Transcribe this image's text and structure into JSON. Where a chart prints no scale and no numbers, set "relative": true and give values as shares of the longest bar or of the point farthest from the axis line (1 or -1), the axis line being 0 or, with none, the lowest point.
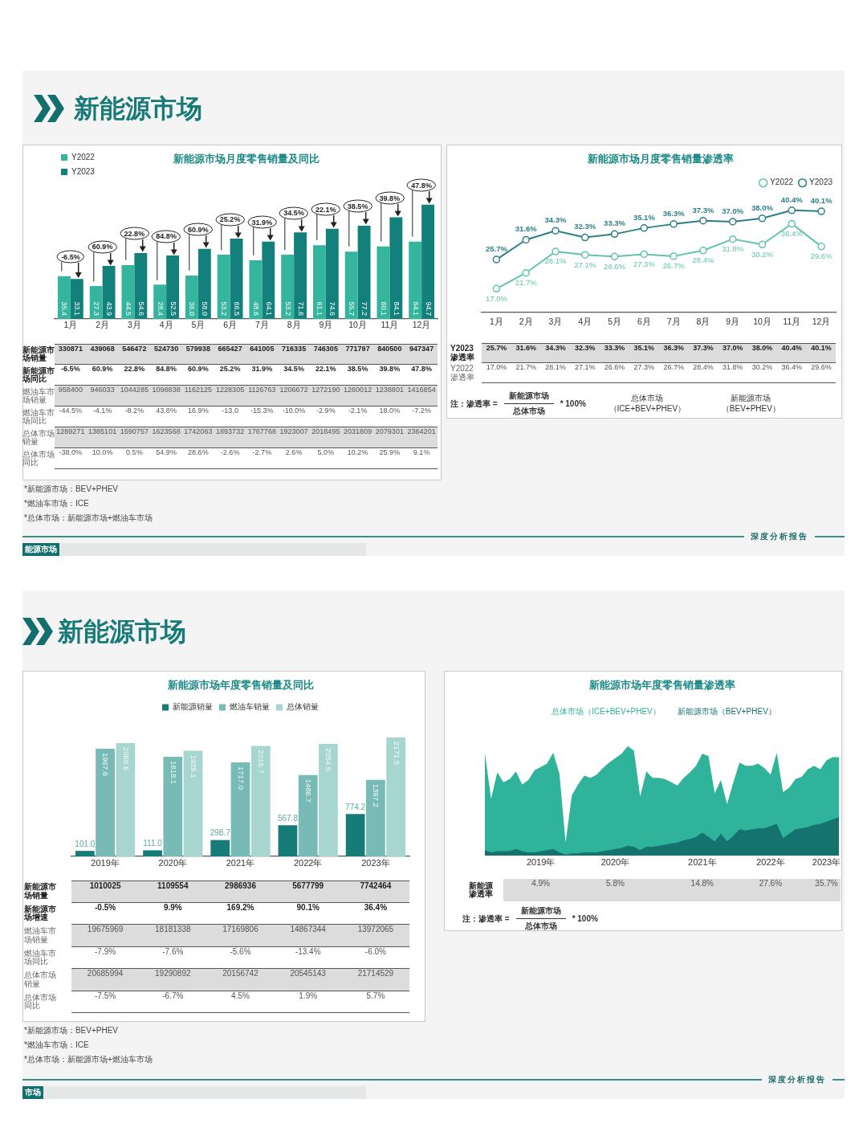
{
  "chart_data": [
    {
      "type": "other",
      "title": "新能源市场",
      "annotations": [
        "深度分析报告",
        "能源市场"
      ]
    },
    {
      "type": "bar",
      "title": "新能源市场月度零售销量及同比",
      "categories": [
        "1月",
        "2月",
        "3月",
        "4月",
        "5月",
        "6月",
        "7月",
        "8月",
        "9月",
        "10月",
        "11月",
        "12月"
      ],
      "series": [
        {
          "name": "Y2022",
          "color": "#35b59d",
          "values": [
            35.4,
            27.3,
            44.5,
            28.4,
            36.0,
            53.2,
            48.6,
            53.2,
            61.1,
            55.7,
            60.1,
            64.1
          ],
          "value_labels": [
            "35.4",
            "27.3",
            "44.5",
            "28.4",
            "36.0",
            "53.2",
            "48.6",
            "53.2",
            "61.1",
            "55.7",
            "60.1",
            "64.1"
          ]
        },
        {
          "name": "Y2023",
          "color": "#13807c",
          "values": [
            33.1,
            43.9,
            54.6,
            52.5,
            58.0,
            66.5,
            64.1,
            71.6,
            74.6,
            77.2,
            84.1,
            94.7
          ],
          "value_labels": [
            "33.1",
            "43.9",
            "54.6",
            "52.5",
            "58.0",
            "66.5",
            "64.1",
            "71.6",
            "74.6",
            "77.2",
            "84.1",
            "94.7"
          ]
        }
      ],
      "legend": "top left",
      "tick_labels": false,
      "annotations": [
        {
          "text": "-6.5%",
          "x": "1月",
          "y": 33.1
        },
        {
          "text": "60.9%",
          "x": "2月",
          "y": 43.9
        },
        {
          "text": "22.8%",
          "x": "3月",
          "y": 54.6
        },
        {
          "text": "84.8%",
          "x": "4月",
          "y": 52.5
        },
        {
          "text": "60.9%",
          "x": "5月",
          "y": 58.0
        },
        {
          "text": "25.2%",
          "x": "6月",
          "y": 66.5
        },
        {
          "text": "31.9%",
          "x": "7月",
          "y": 64.1
        },
        {
          "text": "34.5%",
          "x": "8月",
          "y": 71.6
        },
        {
          "text": "22.1%",
          "x": "9月",
          "y": 74.6
        },
        {
          "text": "38.5%",
          "x": "10月",
          "y": 77.2
        },
        {
          "text": "39.8%",
          "x": "11月",
          "y": 84.1
        },
        {
          "text": "47.8%",
          "x": "12月",
          "y": 94.7
        }
      ]
    },
    {
      "type": "heatmap",
      "categories": [
        "1月",
        "2月",
        "3月",
        "4月",
        "5月",
        "6月",
        "7月",
        "8月",
        "9月",
        "10月",
        "11月",
        "12月"
      ],
      "y_categories": [
        "新能源市场销量",
        "新能源市场同比",
        "燃油车市场销量",
        "燃油车市场同比",
        "总体市场销量",
        "总体市场同比"
      ],
      "cells": [
        [
          330871,
          439068,
          546472,
          524730,
          579938,
          665427,
          641005,
          716335,
          746305,
          771797,
          840500,
          947347
        ],
        [
          -6.5,
          60.9,
          22.8,
          84.8,
          60.9,
          25.2,
          31.9,
          34.5,
          22.1,
          38.5,
          39.8,
          47.8
        ],
        [
          958400,
          946033,
          1044285,
          1098838,
          1162125,
          1228305,
          1126763,
          1206672,
          1272190,
          1260012,
          1238801,
          1416854
        ],
        [
          -44.5,
          -4.1,
          -8.2,
          43.8,
          16.9,
          -13.0,
          -15.3,
          -10.0,
          -2.9,
          -2.1,
          18.0,
          -7.2
        ],
        [
          1289271,
          1385101,
          1590757,
          1623568,
          1742063,
          1893732,
          1767768,
          1923007,
          2018495,
          2031809,
          2079301,
          2364201
        ],
        [
          -38.0,
          10.0,
          0.5,
          54.9,
          28.6,
          -2.6,
          -2.7,
          2.6,
          5.0,
          10.2,
          25.9,
          9.1
        ]
      ],
      "cell_labels": [
        [
          "330871",
          "439068",
          "546472",
          "524730",
          "579938",
          "665427",
          "641005",
          "716335",
          "746305",
          "771797",
          "840500",
          "947347"
        ],
        [
          "-6.5%",
          "60.9%",
          "22.8%",
          "84.8%",
          "60.9%",
          "25.2%",
          "31.9%",
          "34.5%",
          "22.1%",
          "38.5%",
          "39.8%",
          "47.8%"
        ],
        [
          "958400",
          "946033",
          "1044285",
          "1098838",
          "1162125",
          "1228305",
          "1126763",
          "1206672",
          "1272190",
          "1260012",
          "1238801",
          "1416854"
        ],
        [
          "-44.5%",
          "-4.1%",
          "-8.2%",
          "43.8%",
          "16.9%",
          "-13.0",
          "-15.3%",
          "-10.0%",
          "-2.9%",
          "-2.1%",
          "18.0%",
          "-7.2%"
        ],
        [
          "1289271",
          "1385101",
          "1590757",
          "1623568",
          "1742063",
          "1893732",
          "1767768",
          "1923007",
          "2018495",
          "2031809",
          "2079301",
          "2364201"
        ],
        [
          "-38.0%",
          "10.0%",
          "0.5%",
          "54.9%",
          "28.6%",
          "-2.6%",
          "-2.7%",
          "2.6%",
          "5.0%",
          "10.2%",
          "25.9%",
          "9.1%"
        ]
      ],
      "annotations": [
        "*新能源市场：BEV+PHEV",
        "*燃油车市场：ICE",
        "*总体市场：新能源市场+燃油车市场"
      ]
    },
    {
      "type": "line",
      "title": "新能源市场月度零售销量渗透率",
      "categories": [
        "1月",
        "2月",
        "3月",
        "4月",
        "5月",
        "6月",
        "7月",
        "8月",
        "9月",
        "10月",
        "11月",
        "12月"
      ],
      "series": [
        {
          "name": "Y2022",
          "color": "#5fc4ab",
          "values": [
            17.0,
            21.7,
            28.1,
            27.1,
            26.6,
            27.3,
            26.7,
            28.4,
            31.8,
            30.2,
            36.4,
            29.6
          ],
          "value_labels": [
            "17.0%",
            "21.7%",
            "28.1%",
            "27.1%",
            "26.6%",
            "27.3%",
            "26.7%",
            "28.4%",
            "31.8%",
            "30.2%",
            "36.4%",
            "29.6%"
          ]
        },
        {
          "name": "Y2023",
          "color": "#2c7f86",
          "values": [
            25.7,
            31.6,
            34.3,
            32.3,
            33.3,
            35.1,
            36.3,
            37.3,
            37.0,
            38.0,
            40.4,
            40.1
          ],
          "value_labels": [
            "25.7%",
            "31.6%",
            "34.3%",
            "32.3%",
            "33.3%",
            "35.1%",
            "36.3%",
            "37.3%",
            "37.0%",
            "38.0%",
            "40.4%",
            "40.1%"
          ]
        }
      ],
      "marker": "circle",
      "legend": "top right",
      "tick_labels": false
    },
    {
      "type": "heatmap",
      "categories": [
        "1月",
        "2月",
        "3月",
        "4月",
        "5月",
        "6月",
        "7月",
        "8月",
        "9月",
        "10月",
        "11月",
        "12月"
      ],
      "y_categories": [
        "Y2023 渗透率",
        "Y2022 渗透率"
      ],
      "cells": [
        [
          25.7,
          31.6,
          34.3,
          32.3,
          33.3,
          35.1,
          36.3,
          37.3,
          37.0,
          38.0,
          40.4,
          40.1
        ],
        [
          17.0,
          21.7,
          28.1,
          27.1,
          26.6,
          27.3,
          26.7,
          28.4,
          31.8,
          30.2,
          36.4,
          29.6
        ]
      ],
      "cell_labels": [
        [
          "25.7%",
          "31.6%",
          "34.3%",
          "32.3%",
          "33.3%",
          "35.1%",
          "36.3%",
          "37.3%",
          "37.0%",
          "38.0%",
          "40.4%",
          "40.1%"
        ],
        [
          "17.0%",
          "21.7%",
          "28.1%",
          "27.1%",
          "26.6%",
          "27.3%",
          "26.7%",
          "28.4%",
          "31.8%",
          "30.2%",
          "36.4%",
          "29.6%"
        ]
      ],
      "annotations": [
        "注：渗透率 =",
        "新能源市场",
        "总体市场",
        "* 100%",
        "总体市场（ICE+BEV+PHEV）",
        "新能源市场（BEV+PHEV）"
      ]
    },
    {
      "type": "other",
      "title": "新能源市场",
      "annotations": [
        "深度分析报告",
        "市场"
      ]
    },
    {
      "type": "bar",
      "title": "新能源市场年度零售销量及同比",
      "categories": [
        "2019年",
        "2020年",
        "2021年",
        "2022年",
        "2023年"
      ],
      "series": [
        {
          "name": "新能源销量",
          "color": "#177b78",
          "values": [
            101.0,
            111.0,
            298.7,
            567.8,
            774.2
          ],
          "value_labels": [
            "101.0",
            "111.0",
            "298.7",
            "567.8",
            "774.2"
          ]
        },
        {
          "name": "燃油车销量",
          "color": "#78bab5",
          "values": [
            1967.6,
            1818.1,
            1717.0,
            1486.7,
            1397.2
          ],
          "value_labels": [
            "1967.6",
            "1818.1",
            "1717.0",
            "1486.7",
            "1397.2"
          ]
        },
        {
          "name": "总体销量",
          "color": "#a7d6d1",
          "values": [
            2068.6,
            1929.1,
            2015.7,
            2054.5,
            2171.5
          ],
          "value_labels": [
            "2068.6",
            "1929.1",
            "2015.7",
            "2054.5",
            "2171.5"
          ]
        }
      ],
      "legend": "top",
      "tick_labels": false
    },
    {
      "type": "heatmap",
      "categories": [
        "2019年",
        "2020年",
        "2021年",
        "2022年",
        "2023年"
      ],
      "y_categories": [
        "新能源市场销量",
        "新能源市场增速",
        "燃油车市场销量",
        "燃油车市场同比",
        "总体市场销量",
        "总体市场同比"
      ],
      "cells": [
        [
          1010025,
          1109554,
          2986936,
          5677799,
          7742464
        ],
        [
          -0.5,
          9.9,
          169.2,
          90.1,
          36.4
        ],
        [
          19675969,
          18181338,
          17169806,
          14867344,
          13972065
        ],
        [
          -7.9,
          -7.6,
          -5.6,
          -13.4,
          -6.0
        ],
        [
          20685994,
          19290892,
          20156742,
          20545143,
          21714529
        ],
        [
          -7.5,
          -6.7,
          4.5,
          1.9,
          5.7
        ]
      ],
      "cell_labels": [
        [
          "1010025",
          "1109554",
          "2986936",
          "5677799",
          "7742464"
        ],
        [
          "-0.5%",
          "9.9%",
          "169.2%",
          "90.1%",
          "36.4%"
        ],
        [
          "19675969",
          "18181338",
          "17169806",
          "14867344",
          "13972065"
        ],
        [
          "-7.9%",
          "-7.6%",
          "-5.6%",
          "-13.4%",
          "-6.0%"
        ],
        [
          "20685994",
          "19290892",
          "20156742",
          "20545143",
          "21714529"
        ],
        [
          "-7.5%",
          "-6.7%",
          "4.5%",
          "1.9%",
          "5.7%"
        ]
      ],
      "annotations": [
        "*新能源市场：BEV+PHEV",
        "*燃油车市场：ICE",
        "*总体市场：新能源市场+燃油车市场"
      ]
    },
    {
      "type": "area",
      "title": "新能源市场年度零售销量渗透率",
      "relative": true,
      "legend": "top",
      "tick_labels": false,
      "categories": [
        null,
        null,
        null,
        null,
        null,
        null,
        null,
        null,
        null,
        "2019年",
        null,
        null,
        null,
        null,
        null,
        null,
        null,
        null,
        null,
        null,
        null,
        "2020年",
        null,
        null,
        null,
        null,
        null,
        null,
        null,
        null,
        null,
        null,
        null,
        null,
        null,
        "2021年",
        null,
        null,
        null,
        null,
        null,
        null,
        null,
        null,
        null,
        null,
        "2022年",
        null,
        null,
        null,
        null,
        null,
        null,
        null,
        null,
        "2023年",
        null,
        null
      ],
      "series": [
        {
          "name": "总体市场（ICE+BEV+PHEV）",
          "color": "#2fb39a",
          "values": [
            0.94,
            0.52,
            0.76,
            0.67,
            0.7,
            0.77,
            0.65,
            0.69,
            0.78,
            0.81,
            0.84,
            0.94,
            0.75,
            0.12,
            0.55,
            0.65,
            0.73,
            0.71,
            0.74,
            0.8,
            0.85,
            0.89,
            0.93,
            1,
            0.96,
            0.54,
            0.77,
            0.71,
            0.71,
            0.7,
            0.67,
            0.64,
            0.71,
            0.76,
            0.82,
            0.93,
            0.91,
            0.57,
            0.69,
            0.47,
            0.67,
            0.85,
            0.82,
            0.82,
            0.84,
            0.8,
            0.74,
            0.94,
            0.58,
            0.62,
            0.7,
            0.72,
            0.79,
            0.82,
            0.79,
            0.87,
            0.9,
            0.9
          ]
        },
        {
          "name": "新能源市场（BEV+PHEV）",
          "color": "#14736f",
          "values": [
            0.05,
            0.03,
            0.04,
            0.04,
            0.04,
            0.06,
            0.04,
            0.03,
            0.03,
            0.04,
            0.05,
            0.06,
            0.03,
            0.01,
            0.02,
            0.02,
            0.03,
            0.03,
            0.03,
            0.04,
            0.05,
            0.06,
            0.07,
            0.09,
            0.08,
            0.05,
            0.08,
            0.08,
            0.09,
            0.1,
            0.11,
            0.12,
            0.14,
            0.15,
            0.17,
            0.21,
            0.17,
            0.13,
            0.2,
            0.13,
            0.18,
            0.24,
            0.23,
            0.24,
            0.25,
            0.25,
            0.27,
            0.29,
            0.16,
            0.2,
            0.24,
            0.25,
            0.26,
            0.28,
            0.29,
            0.31,
            0.33,
            0.35
          ]
        }
      ]
    },
    {
      "type": "heatmap",
      "categories": [
        "2019年",
        "2020年",
        "2021年",
        "2022年",
        "2023年"
      ],
      "y_categories": [
        "新能源渗透率"
      ],
      "cells": [
        [
          4.9,
          5.8,
          14.8,
          27.6,
          35.7
        ]
      ],
      "cell_labels": [
        [
          "4.9%",
          "5.8%",
          "14.8%",
          "27.6%",
          "35.7%"
        ]
      ],
      "annotations": [
        "注：渗透率 =",
        "新能源市场",
        "总体市场",
        "* 100%"
      ]
    }
  ]
}
